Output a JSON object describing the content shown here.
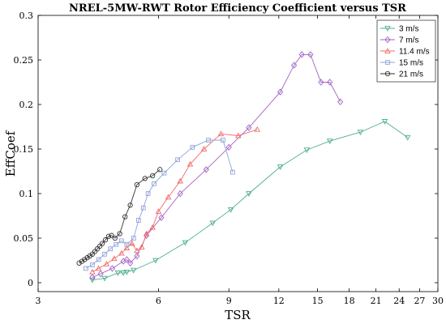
{
  "chart_data": {
    "type": "line",
    "title": "NREL-5MW-RWT Rotor Efficiency Coefficient versus TSR",
    "xlabel": "TSR",
    "ylabel": "EffCoef",
    "xscale": "log",
    "xlim": [
      3,
      30
    ],
    "ylim": [
      -0.01,
      0.3
    ],
    "xticks": [
      3,
      6,
      9,
      12,
      15,
      18,
      21,
      24,
      27,
      30
    ],
    "xtick_labels": [
      "3",
      "6",
      "9",
      "12",
      "15",
      "18",
      "21",
      "24",
      "27",
      "30"
    ],
    "yticks": [
      0,
      0.05,
      0.1,
      0.15,
      0.2,
      0.25,
      0.3
    ],
    "ytick_labels": [
      "0",
      "0.05",
      "0.1",
      "0.15",
      "0.2",
      "0.25",
      "0.3"
    ],
    "grid": false,
    "legend_position": "top-right",
    "series": [
      {
        "name": "3 m/s",
        "color": "#4dae8e",
        "marker": "triangle-down",
        "points": [
          [
            4.1,
            0.003
          ],
          [
            4.4,
            0.005
          ],
          [
            4.75,
            0.011
          ],
          [
            4.9,
            0.011
          ],
          [
            5.0,
            0.012
          ],
          [
            5.2,
            0.014
          ],
          [
            5.9,
            0.025
          ],
          [
            7.0,
            0.045
          ],
          [
            8.2,
            0.067
          ],
          [
            9.1,
            0.082
          ],
          [
            10.1,
            0.1
          ],
          [
            12.1,
            0.13
          ],
          [
            14.1,
            0.149
          ],
          [
            16.1,
            0.159
          ],
          [
            19.2,
            0.169
          ],
          [
            22.1,
            0.181
          ],
          [
            25.2,
            0.163
          ]
        ]
      },
      {
        "name": "7 m/s",
        "color": "#a361c6",
        "marker": "diamond",
        "points": [
          [
            4.1,
            0.006
          ],
          [
            4.3,
            0.01
          ],
          [
            4.6,
            0.016
          ],
          [
            4.9,
            0.024
          ],
          [
            5.0,
            0.026
          ],
          [
            5.1,
            0.022
          ],
          [
            5.3,
            0.03
          ],
          [
            5.6,
            0.053
          ],
          [
            6.1,
            0.073
          ],
          [
            6.8,
            0.1
          ],
          [
            7.9,
            0.127
          ],
          [
            9.0,
            0.152
          ],
          [
            10.1,
            0.174
          ],
          [
            12.1,
            0.214
          ],
          [
            13.1,
            0.244
          ],
          [
            13.7,
            0.256
          ],
          [
            14.4,
            0.256
          ],
          [
            15.3,
            0.225
          ],
          [
            16.1,
            0.225
          ],
          [
            17.1,
            0.203
          ]
        ]
      },
      {
        "name": "11.4 m/s",
        "color": "#f06b6b",
        "marker": "triangle-up",
        "points": [
          [
            4.1,
            0.012
          ],
          [
            4.25,
            0.016
          ],
          [
            4.45,
            0.021
          ],
          [
            4.65,
            0.027
          ],
          [
            4.85,
            0.033
          ],
          [
            5.0,
            0.039
          ],
          [
            5.15,
            0.044
          ],
          [
            5.3,
            0.036
          ],
          [
            5.45,
            0.04
          ],
          [
            5.6,
            0.055
          ],
          [
            5.8,
            0.062
          ],
          [
            6.0,
            0.08
          ],
          [
            6.35,
            0.096
          ],
          [
            6.8,
            0.114
          ],
          [
            7.2,
            0.133
          ],
          [
            7.8,
            0.15
          ],
          [
            8.6,
            0.167
          ],
          [
            9.5,
            0.165
          ],
          [
            10.6,
            0.172
          ]
        ]
      },
      {
        "name": "15 m/s",
        "color": "#8fa3d9",
        "marker": "square",
        "points": [
          [
            3.95,
            0.016
          ],
          [
            4.1,
            0.02
          ],
          [
            4.25,
            0.026
          ],
          [
            4.4,
            0.032
          ],
          [
            4.55,
            0.038
          ],
          [
            4.7,
            0.043
          ],
          [
            4.85,
            0.047
          ],
          [
            5.0,
            0.043
          ],
          [
            5.2,
            0.05
          ],
          [
            5.35,
            0.07
          ],
          [
            5.5,
            0.084
          ],
          [
            5.65,
            0.1
          ],
          [
            5.85,
            0.111
          ],
          [
            6.2,
            0.123
          ],
          [
            6.7,
            0.138
          ],
          [
            7.3,
            0.152
          ],
          [
            8.0,
            0.16
          ],
          [
            8.7,
            0.16
          ],
          [
            9.2,
            0.124
          ]
        ]
      },
      {
        "name": "21 m/s",
        "color": "#333333",
        "marker": "circle",
        "points": [
          [
            3.8,
            0.022
          ],
          [
            3.86,
            0.024
          ],
          [
            3.92,
            0.026
          ],
          [
            3.98,
            0.028
          ],
          [
            4.04,
            0.03
          ],
          [
            4.1,
            0.032
          ],
          [
            4.16,
            0.035
          ],
          [
            4.22,
            0.038
          ],
          [
            4.28,
            0.041
          ],
          [
            4.34,
            0.044
          ],
          [
            4.42,
            0.048
          ],
          [
            4.5,
            0.052
          ],
          [
            4.58,
            0.053
          ],
          [
            4.67,
            0.05
          ],
          [
            4.8,
            0.055
          ],
          [
            4.95,
            0.074
          ],
          [
            5.1,
            0.087
          ],
          [
            5.3,
            0.11
          ],
          [
            5.55,
            0.117
          ],
          [
            5.8,
            0.12
          ],
          [
            6.05,
            0.127
          ]
        ]
      }
    ]
  }
}
